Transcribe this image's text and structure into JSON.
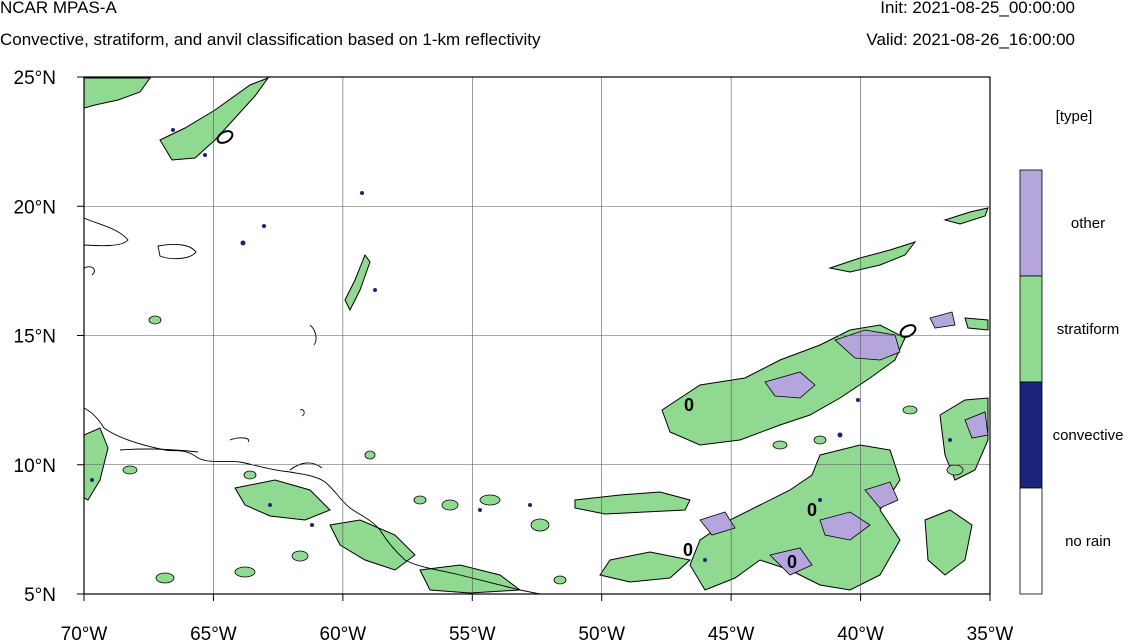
{
  "header": {
    "title": "NCAR MPAS-A",
    "subtitle": "Convective, stratiform, and anvil classification based on 1-km reflectivity",
    "init": "Init: 2021-08-25_00:00:00",
    "valid": "Valid: 2021-08-26_16:00:00"
  },
  "map": {
    "lon_range": [
      -70,
      -35
    ],
    "lat_range": [
      5,
      25
    ],
    "x_ticks": [
      "70°W",
      "65°W",
      "60°W",
      "55°W",
      "50°W",
      "45°W",
      "40°W",
      "35°W"
    ],
    "y_ticks": [
      "25°N",
      "20°N",
      "15°N",
      "10°N",
      "5°N"
    ],
    "grid": true,
    "contour_label": "0"
  },
  "legend": {
    "title": "[type]",
    "items": [
      {
        "label": "other",
        "color": "#b4a6dc"
      },
      {
        "label": "stratiform",
        "color": "#8fd990"
      },
      {
        "label": "convective",
        "color": "#1b237a"
      },
      {
        "label": "no rain",
        "color": "#ffffff"
      }
    ]
  },
  "colors": {
    "other": "#b4a6dc",
    "stratiform": "#8fd990",
    "convective": "#1b237a",
    "coast": "#000000"
  }
}
